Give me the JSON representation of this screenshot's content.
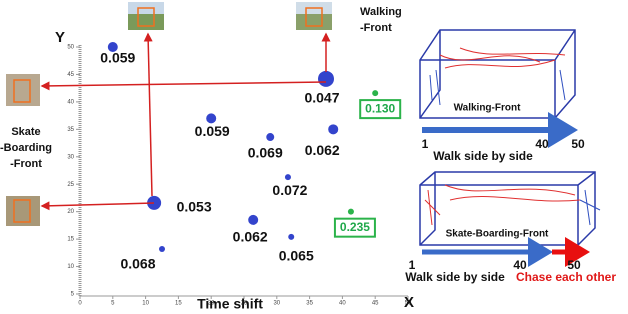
{
  "chart_data": {
    "type": "scatter",
    "xlabel": "Time shift",
    "x_axis_name": "X",
    "y_axis_name": "Y",
    "xlim": [
      0,
      50
    ],
    "ylim": [
      5,
      50
    ],
    "xticks": [
      0,
      5,
      10,
      15,
      20,
      25,
      30,
      35,
      40,
      45,
      50
    ],
    "yticks": [
      5,
      10,
      15,
      20,
      25,
      30,
      35,
      40,
      45,
      50
    ],
    "series": [
      {
        "color": "#3344cc",
        "x": [
          5,
          37.5,
          20,
          29,
          38.6,
          31.7,
          11.3,
          26.4,
          32.2,
          12.5
        ],
        "y": [
          50,
          44.2,
          37,
          33.6,
          35,
          26.3,
          21.6,
          18.5,
          15.4,
          13.2
        ],
        "sizes": [
          5,
          8,
          5,
          4,
          5,
          3,
          7,
          5,
          3,
          3
        ],
        "labels": [
          "0.059",
          "0.047",
          "0.059",
          "0.069",
          "0.062",
          "0.072",
          "0.053",
          "0.062",
          "0.065",
          "0.068"
        ]
      },
      {
        "color": "#2bb34a",
        "x": [
          45,
          41.3
        ],
        "y": [
          41.6,
          20
        ],
        "sizes": [
          3,
          3
        ],
        "labels": [
          "0.130",
          "0.235"
        ]
      }
    ]
  },
  "annotations": {
    "walking": [
      "Walking",
      "-Front"
    ],
    "skate": [
      "Skate",
      "-Boarding",
      "-Front"
    ]
  },
  "diagrams": [
    {
      "title": "Walking-Front",
      "caption": "Walk side by side",
      "ticks": [
        "1",
        "40",
        "50"
      ]
    },
    {
      "title": "Skate-Boarding-Front",
      "caption": "Walk side by side",
      "caption2": "Chase each other",
      "ticks": [
        "1",
        "40",
        "50"
      ]
    }
  ]
}
